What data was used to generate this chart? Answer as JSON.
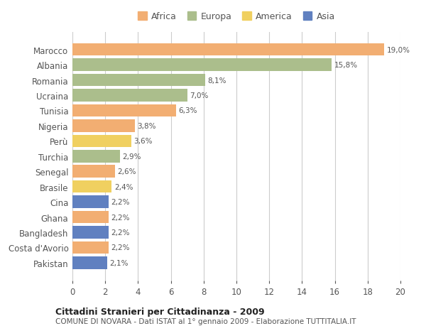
{
  "countries": [
    "Marocco",
    "Albania",
    "Romania",
    "Ucraina",
    "Tunisia",
    "Nigeria",
    "Perù",
    "Turchia",
    "Senegal",
    "Brasile",
    "Cina",
    "Ghana",
    "Bangladesh",
    "Costa d'Avorio",
    "Pakistan"
  ],
  "values": [
    19.0,
    15.8,
    8.1,
    7.0,
    6.3,
    3.8,
    3.6,
    2.9,
    2.6,
    2.4,
    2.2,
    2.2,
    2.2,
    2.2,
    2.1
  ],
  "labels": [
    "19,0%",
    "15,8%",
    "8,1%",
    "7,0%",
    "6,3%",
    "3,8%",
    "3,6%",
    "2,9%",
    "2,6%",
    "2,4%",
    "2,2%",
    "2,2%",
    "2,2%",
    "2,2%",
    "2,1%"
  ],
  "continents": [
    "Africa",
    "Europa",
    "Europa",
    "Europa",
    "Africa",
    "Africa",
    "America",
    "Europa",
    "Africa",
    "America",
    "Asia",
    "Africa",
    "Asia",
    "Africa",
    "Asia"
  ],
  "continent_colors": {
    "Africa": "#F2AE72",
    "Europa": "#ABBE8C",
    "America": "#F0D060",
    "Asia": "#6080C0"
  },
  "legend_order": [
    "Africa",
    "Europa",
    "America",
    "Asia"
  ],
  "xlim": [
    0,
    20
  ],
  "xticks": [
    0,
    2,
    4,
    6,
    8,
    10,
    12,
    14,
    16,
    18,
    20
  ],
  "title": "Cittadini Stranieri per Cittadinanza - 2009",
  "subtitle": "COMUNE DI NOVARA - Dati ISTAT al 1° gennaio 2009 - Elaborazione TUTTITALIA.IT",
  "background_color": "#ffffff",
  "bar_height": 0.82,
  "grid_color": "#cccccc"
}
